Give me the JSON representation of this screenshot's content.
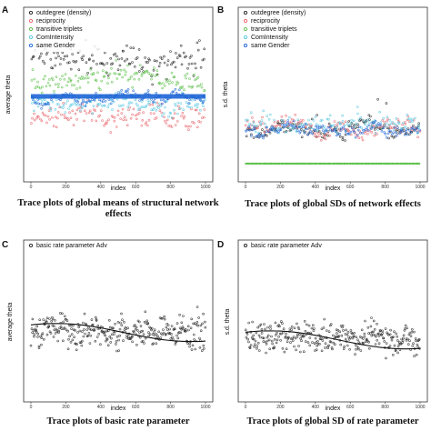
{
  "chart_data": [
    {
      "panel": "A",
      "type": "scatter",
      "xlabel": "index",
      "ylabel": "average theta",
      "xlim": [
        0,
        1000
      ],
      "x_ticks": [
        "0",
        "200",
        "400",
        "600",
        "800",
        "1000"
      ],
      "legend": "top-left",
      "grid": false,
      "caption": "Trace plots of global means of structural network effects",
      "series": [
        {
          "name": "outdegree (density)",
          "color": "#222222",
          "level": 0.72,
          "spread": 0.12
        },
        {
          "name": "reciprocity",
          "color": "#e8636b",
          "level": 0.38,
          "spread": 0.1
        },
        {
          "name": "transitive triplets",
          "color": "#5cc04a",
          "level": 0.6,
          "spread": 0.09
        },
        {
          "name": "ComIntensity",
          "color": "#56c7e0",
          "level": 0.45,
          "spread": 0.07
        },
        {
          "name": "same Gender",
          "color": "#1e66d6",
          "level": 0.5,
          "spread": 0.02
        }
      ]
    },
    {
      "panel": "B",
      "type": "scatter",
      "xlabel": "index",
      "ylabel": "s.d. theta",
      "xlim": [
        0,
        1000
      ],
      "x_ticks": [
        "0",
        "200",
        "400",
        "600",
        "800",
        "1000"
      ],
      "legend": "top-left",
      "grid": false,
      "caption": "Trace plots of global SDs of network effects",
      "series": [
        {
          "name": "outdegree (density)",
          "color": "#222222",
          "level": 0.3,
          "spread": 0.05
        },
        {
          "name": "reciprocity",
          "color": "#e8636b",
          "level": 0.32,
          "spread": 0.05
        },
        {
          "name": "transitive triplets",
          "color": "#5cc04a",
          "level": 0.08,
          "spread": 0.0
        },
        {
          "name": "ComIntensity",
          "color": "#56c7e0",
          "level": 0.33,
          "spread": 0.08
        },
        {
          "name": "same Gender",
          "color": "#1e66d6",
          "level": 0.29,
          "spread": 0.03
        }
      ]
    },
    {
      "panel": "C",
      "type": "scatter",
      "xlabel": "index",
      "ylabel": "average theta",
      "xlim": [
        0,
        1000
      ],
      "x_ticks": [
        "0",
        "200",
        "400",
        "600",
        "800",
        "1000"
      ],
      "legend": "top-left",
      "grid": false,
      "caption": "Trace plots of basic rate parameter",
      "series": [
        {
          "name": "basic rate parameter Adv",
          "color": "#222222",
          "level": 0.45,
          "spread": 0.16
        }
      ]
    },
    {
      "panel": "D",
      "type": "scatter",
      "xlabel": "index",
      "ylabel": "s.d. theta",
      "xlim": [
        0,
        1000
      ],
      "x_ticks": [
        "0",
        "200",
        "400",
        "600",
        "800",
        "1000"
      ],
      "legend": "top-left",
      "grid": false,
      "caption": "Trace plots of global SD of rate parameter",
      "series": [
        {
          "name": "basic rate parameter Adv",
          "color": "#222222",
          "level": 0.4,
          "spread": 0.15
        }
      ]
    }
  ]
}
